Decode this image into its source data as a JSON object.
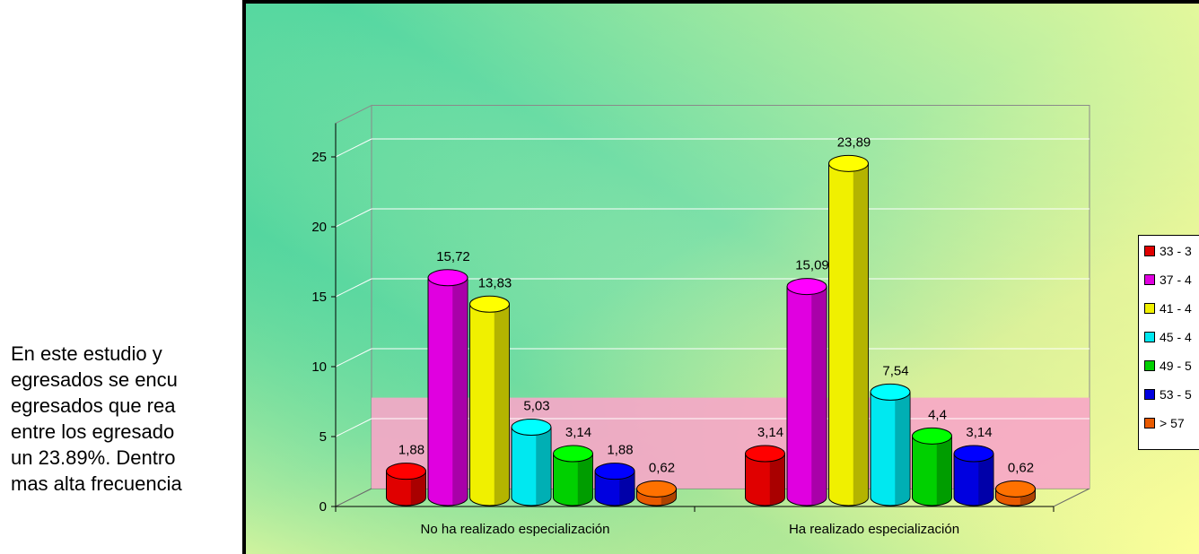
{
  "document": {
    "lines": [
      "En este estudio y",
      "egresados se encu",
      "egresados que rea",
      "entre los egresado",
      "un 23.89%. Dentro",
      "mas alta frecuencia"
    ]
  },
  "chart_data": {
    "type": "bar",
    "categories": [
      "No ha realizado especialización",
      "Ha realizado especialización"
    ],
    "series": [
      {
        "name": "33 - 3",
        "color": "#e00000",
        "values": [
          1.88,
          3.14
        ],
        "labels": [
          "1,88",
          "3,14"
        ]
      },
      {
        "name": "37 - 4",
        "color": "#e000e0",
        "values": [
          15.72,
          15.09
        ],
        "labels": [
          "15,72",
          "15,09"
        ]
      },
      {
        "name": "41 - 4",
        "color": "#f0f000",
        "values": [
          13.83,
          23.89
        ],
        "labels": [
          "13,83",
          "23,89"
        ]
      },
      {
        "name": "45 - 4",
        "color": "#00e8f0",
        "values": [
          5.03,
          7.54
        ],
        "labels": [
          "5,03",
          "7,54"
        ]
      },
      {
        "name": "49 - 5",
        "color": "#00d000",
        "values": [
          3.14,
          4.4
        ],
        "labels": [
          "3,14",
          "4,4"
        ]
      },
      {
        "name": "53 - 5",
        "color": "#0000e0",
        "values": [
          1.88,
          3.14
        ],
        "labels": [
          "1,88",
          "3,14"
        ]
      },
      {
        "name": "> 57",
        "color": "#e85a00",
        "values": [
          0.62,
          0.62
        ],
        "labels": [
          "0,62",
          "0,62"
        ]
      }
    ],
    "yticks": [
      "0",
      "5",
      "10",
      "15",
      "20",
      "25"
    ],
    "ylim": [
      0,
      25
    ],
    "grid": true,
    "legend": "right"
  }
}
